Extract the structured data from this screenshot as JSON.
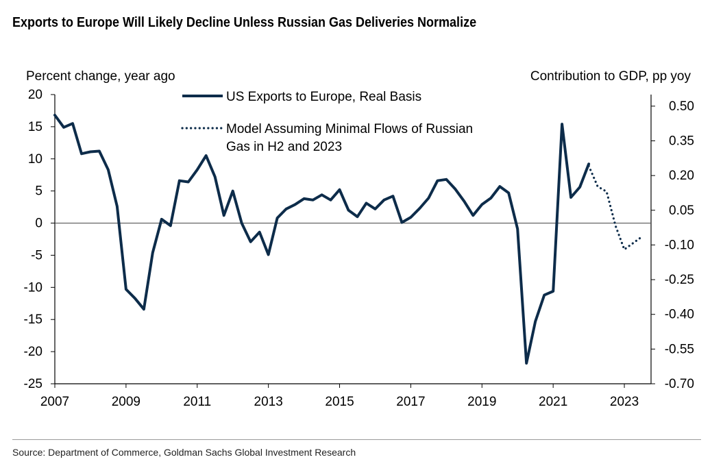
{
  "title": "Exports to Europe Will Likely Decline Unless Russian Gas Deliveries Normalize",
  "source": "Source: Department of Commerce, Goldman Sachs Global Investment Research",
  "colors": {
    "series": "#0d2c4a",
    "axis": "#000000",
    "zero_line": "#555555"
  },
  "chart_data": {
    "type": "line",
    "left_axis_label": "Percent change, year ago",
    "right_axis_label": "Contribution to GDP, pp yoy",
    "ylim": [
      -25,
      20
    ],
    "yticks": [
      20,
      15,
      10,
      5,
      0,
      -5,
      -10,
      -15,
      -20,
      -25
    ],
    "y2lim": [
      -0.7,
      0.55
    ],
    "y2ticks": [
      "0.50",
      "0.35",
      "0.20",
      "0.05",
      "-0.10",
      "-0.25",
      "-0.40",
      "-0.55",
      "-0.70"
    ],
    "xlim": [
      2007,
      2023.75
    ],
    "xticks": [
      "2007",
      "2009",
      "2011",
      "2013",
      "2015",
      "2017",
      "2019",
      "2021",
      "2023"
    ],
    "legend_position": "top-center",
    "grid": false,
    "series": [
      {
        "name": "US Exports to Europe, Real Basis",
        "style": "solid",
        "points": [
          [
            2007.0,
            16.8
          ],
          [
            2007.25,
            14.9
          ],
          [
            2007.5,
            15.5
          ],
          [
            2007.75,
            10.8
          ],
          [
            2008.0,
            11.1
          ],
          [
            2008.25,
            11.2
          ],
          [
            2008.5,
            8.3
          ],
          [
            2008.75,
            2.6
          ],
          [
            2009.0,
            -10.3
          ],
          [
            2009.25,
            -11.7
          ],
          [
            2009.5,
            -13.4
          ],
          [
            2009.75,
            -4.6
          ],
          [
            2010.0,
            0.6
          ],
          [
            2010.25,
            -0.4
          ],
          [
            2010.5,
            6.6
          ],
          [
            2010.75,
            6.4
          ],
          [
            2011.0,
            8.3
          ],
          [
            2011.25,
            10.5
          ],
          [
            2011.5,
            7.2
          ],
          [
            2011.75,
            1.2
          ],
          [
            2012.0,
            5.0
          ],
          [
            2012.25,
            0.0
          ],
          [
            2012.5,
            -2.9
          ],
          [
            2012.75,
            -1.4
          ],
          [
            2013.0,
            -4.9
          ],
          [
            2013.25,
            0.8
          ],
          [
            2013.5,
            2.2
          ],
          [
            2013.75,
            2.9
          ],
          [
            2014.0,
            3.8
          ],
          [
            2014.25,
            3.6
          ],
          [
            2014.5,
            4.4
          ],
          [
            2014.75,
            3.6
          ],
          [
            2015.0,
            5.2
          ],
          [
            2015.25,
            2.0
          ],
          [
            2015.5,
            1.0
          ],
          [
            2015.75,
            3.1
          ],
          [
            2016.0,
            2.2
          ],
          [
            2016.25,
            3.6
          ],
          [
            2016.5,
            4.2
          ],
          [
            2016.75,
            0.1
          ],
          [
            2017.0,
            0.9
          ],
          [
            2017.25,
            2.3
          ],
          [
            2017.5,
            3.9
          ],
          [
            2017.75,
            6.6
          ],
          [
            2018.0,
            6.8
          ],
          [
            2018.25,
            5.3
          ],
          [
            2018.5,
            3.4
          ],
          [
            2018.75,
            1.2
          ],
          [
            2019.0,
            2.9
          ],
          [
            2019.25,
            3.9
          ],
          [
            2019.5,
            5.7
          ],
          [
            2019.75,
            4.7
          ],
          [
            2020.0,
            -0.9
          ],
          [
            2020.25,
            -21.8
          ],
          [
            2020.5,
            -15.3
          ],
          [
            2020.75,
            -11.2
          ],
          [
            2021.0,
            -10.6
          ],
          [
            2021.25,
            15.4
          ],
          [
            2021.5,
            4.0
          ],
          [
            2021.75,
            5.6
          ],
          [
            2022.0,
            9.2
          ]
        ]
      },
      {
        "name": "Model Assuming Minimal Flows of Russian Gas in H2 and 2023",
        "style": "dotted",
        "points": [
          [
            2022.0,
            8.9
          ],
          [
            2022.25,
            5.7
          ],
          [
            2022.5,
            4.9
          ],
          [
            2022.75,
            -0.4
          ],
          [
            2023.0,
            -4.1
          ],
          [
            2023.25,
            -3.1
          ],
          [
            2023.5,
            -2.1
          ]
        ]
      }
    ]
  }
}
